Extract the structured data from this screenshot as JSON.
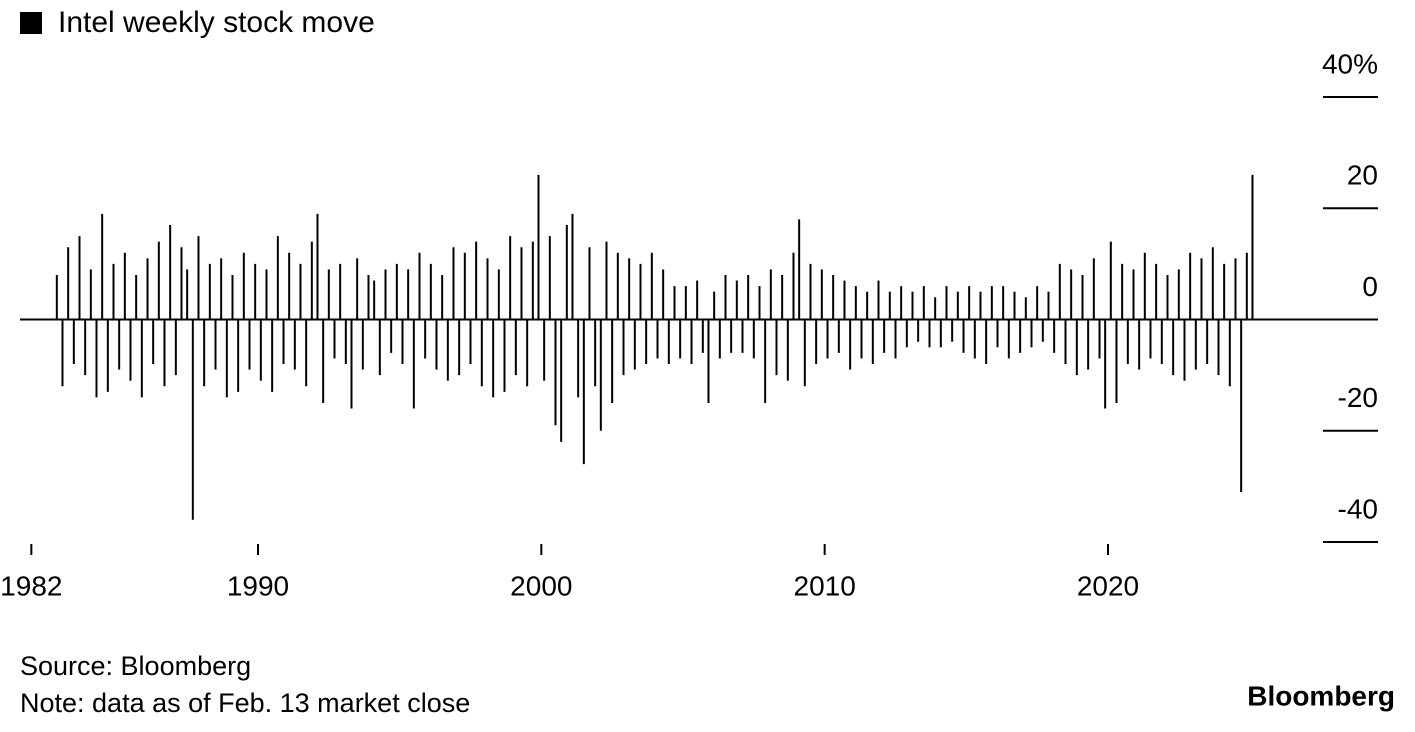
{
  "chart_data": {
    "type": "bar",
    "series": [
      {
        "name": "Intel weekly stock move",
        "color": "#000000",
        "x": [
          1982.9,
          1983.1,
          1983.3,
          1983.5,
          1983.7,
          1983.9,
          1984.1,
          1984.3,
          1984.5,
          1984.7,
          1984.9,
          1985.1,
          1985.3,
          1985.5,
          1985.7,
          1985.9,
          1986.1,
          1986.3,
          1986.5,
          1986.7,
          1986.9,
          1987.1,
          1987.3,
          1987.5,
          1987.7,
          1987.9,
          1988.1,
          1988.3,
          1988.5,
          1988.7,
          1988.9,
          1989.1,
          1989.3,
          1989.5,
          1989.7,
          1989.9,
          1990.1,
          1990.3,
          1990.5,
          1990.7,
          1990.9,
          1991.1,
          1991.3,
          1991.5,
          1991.7,
          1991.9,
          1992.1,
          1992.3,
          1992.5,
          1992.7,
          1992.9,
          1993.1,
          1993.3,
          1993.5,
          1993.7,
          1993.9,
          1994.1,
          1994.3,
          1994.5,
          1994.7,
          1994.9,
          1995.1,
          1995.3,
          1995.5,
          1995.7,
          1995.9,
          1996.1,
          1996.3,
          1996.5,
          1996.7,
          1996.9,
          1997.1,
          1997.3,
          1997.5,
          1997.7,
          1997.9,
          1998.1,
          1998.3,
          1998.5,
          1998.7,
          1998.9,
          1999.1,
          1999.3,
          1999.5,
          1999.7,
          1999.9,
          2000.1,
          2000.3,
          2000.5,
          2000.7,
          2000.9,
          2001.1,
          2001.3,
          2001.5,
          2001.7,
          2001.9,
          2002.1,
          2002.3,
          2002.5,
          2002.7,
          2002.9,
          2003.1,
          2003.3,
          2003.5,
          2003.7,
          2003.9,
          2004.1,
          2004.3,
          2004.5,
          2004.7,
          2004.9,
          2005.1,
          2005.3,
          2005.5,
          2005.7,
          2005.9,
          2006.1,
          2006.3,
          2006.5,
          2006.7,
          2006.9,
          2007.1,
          2007.3,
          2007.5,
          2007.7,
          2007.9,
          2008.1,
          2008.3,
          2008.5,
          2008.7,
          2008.9,
          2009.1,
          2009.3,
          2009.5,
          2009.7,
          2009.9,
          2010.1,
          2010.3,
          2010.5,
          2010.7,
          2010.9,
          2011.1,
          2011.3,
          2011.5,
          2011.7,
          2011.9,
          2012.1,
          2012.3,
          2012.5,
          2012.7,
          2012.9,
          2013.1,
          2013.3,
          2013.5,
          2013.7,
          2013.9,
          2014.1,
          2014.3,
          2014.5,
          2014.7,
          2014.9,
          2015.1,
          2015.3,
          2015.5,
          2015.7,
          2015.9,
          2016.1,
          2016.3,
          2016.5,
          2016.7,
          2016.9,
          2017.1,
          2017.3,
          2017.5,
          2017.7,
          2017.9,
          2018.1,
          2018.3,
          2018.5,
          2018.7,
          2018.9,
          2019.1,
          2019.3,
          2019.5,
          2019.7,
          2019.9,
          2020.1,
          2020.3,
          2020.5,
          2020.7,
          2020.9,
          2021.1,
          2021.3,
          2021.5,
          2021.7,
          2021.9,
          2022.1,
          2022.3,
          2022.5,
          2022.7,
          2022.9,
          2023.1,
          2023.3,
          2023.5,
          2023.7,
          2023.9,
          2024.1,
          2024.3,
          2024.5,
          2024.7,
          2024.9,
          2025.1
        ],
        "values": [
          8,
          -12,
          13,
          -8,
          15,
          -10,
          9,
          -14,
          19,
          -13,
          10,
          -9,
          12,
          -11,
          8,
          -14,
          11,
          -8,
          14,
          -12,
          17,
          -10,
          13,
          9,
          -36,
          15,
          -12,
          10,
          -9,
          11,
          -14,
          8,
          -13,
          12,
          -9,
          10,
          -11,
          9,
          -13,
          15,
          -8,
          12,
          -9,
          10,
          -12,
          14,
          19,
          -15,
          9,
          -7,
          10,
          -8,
          -16,
          11,
          -9,
          8,
          7,
          -10,
          9,
          -6,
          10,
          -8,
          9,
          -16,
          12,
          -7,
          10,
          -9,
          8,
          -11,
          13,
          -10,
          12,
          -8,
          14,
          -12,
          11,
          -14,
          9,
          -13,
          15,
          -10,
          13,
          -12,
          14,
          26,
          -11,
          15,
          -19,
          -22,
          17,
          19,
          -14,
          -26,
          13,
          -12,
          -20,
          14,
          -15,
          12,
          -10,
          11,
          -9,
          10,
          -8,
          12,
          -7,
          9,
          -8,
          6,
          -7,
          6,
          -8,
          7,
          -6,
          -15,
          5,
          -7,
          8,
          -6,
          7,
          -6,
          8,
          -7,
          6,
          -15,
          9,
          -10,
          8,
          -11,
          12,
          18,
          -12,
          10,
          -8,
          9,
          -7,
          8,
          -6,
          7,
          -9,
          6,
          -7,
          5,
          -8,
          7,
          -6,
          5,
          -7,
          6,
          -5,
          5,
          -4,
          6,
          -5,
          4,
          -5,
          6,
          -4,
          5,
          -6,
          6,
          -7,
          5,
          -8,
          6,
          -5,
          6,
          -7,
          5,
          -6,
          4,
          -5,
          6,
          -4,
          5,
          -6,
          10,
          -8,
          9,
          -10,
          8,
          -9,
          11,
          -7,
          -16,
          14,
          -15,
          10,
          -8,
          9,
          -9,
          12,
          -7,
          10,
          -8,
          8,
          -10,
          9,
          -11,
          12,
          -9,
          11,
          -8,
          13,
          -10,
          10,
          -12,
          11,
          -31,
          12,
          26
        ]
      }
    ],
    "xlim": [
      1981.6,
      2029.53
    ],
    "xticks": [
      1982,
      1990,
      2000,
      2010,
      2020
    ],
    "ylim": [
      -40,
      40
    ],
    "yticks": [
      {
        "value": 40,
        "label": "40%"
      },
      20,
      0,
      -20,
      -40
    ],
    "source": "Source: Bloomberg",
    "note": "Note: data as of Feb. 13 market close",
    "brand": "Bloomberg"
  }
}
